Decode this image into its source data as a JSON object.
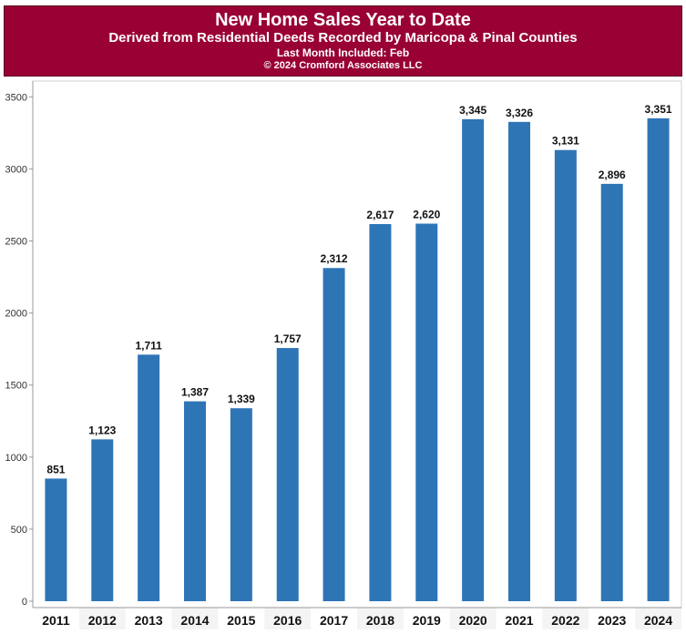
{
  "header": {
    "title": "New Home Sales Year to Date",
    "subtitle": "Derived from Residential Deeds Recorded by Maricopa & Pinal Counties",
    "last_month": "Last Month Included: Feb",
    "copyright": "© 2024 Cromford Associates LLC"
  },
  "colors": {
    "banner": "#990033",
    "bar": "#2e75b6",
    "axis": "#999999",
    "grid": "#e6e6e6"
  },
  "chart_data": {
    "type": "bar",
    "title": "New Home Sales Year to Date",
    "subtitle": "Derived from Residential Deeds Recorded by Maricopa & Pinal Counties",
    "categories": [
      "2011",
      "2012",
      "2013",
      "2014",
      "2015",
      "2016",
      "2017",
      "2018",
      "2019",
      "2020",
      "2021",
      "2022",
      "2023",
      "2024"
    ],
    "values": [
      851,
      1123,
      1711,
      1387,
      1339,
      1757,
      2312,
      2617,
      2620,
      3345,
      3326,
      3131,
      2896,
      3351
    ],
    "value_labels": [
      "851",
      "1,123",
      "1,711",
      "1,387",
      "1,339",
      "1,757",
      "2,312",
      "2,617",
      "2,620",
      "3,345",
      "3,326",
      "3,131",
      "2,896",
      "3,351"
    ],
    "y_ticks": [
      0,
      500,
      1000,
      1500,
      2000,
      2500,
      3000,
      3500
    ],
    "ylim": [
      0,
      3600
    ],
    "xlabel": "",
    "ylabel": "",
    "grid": false,
    "legend": "none"
  }
}
